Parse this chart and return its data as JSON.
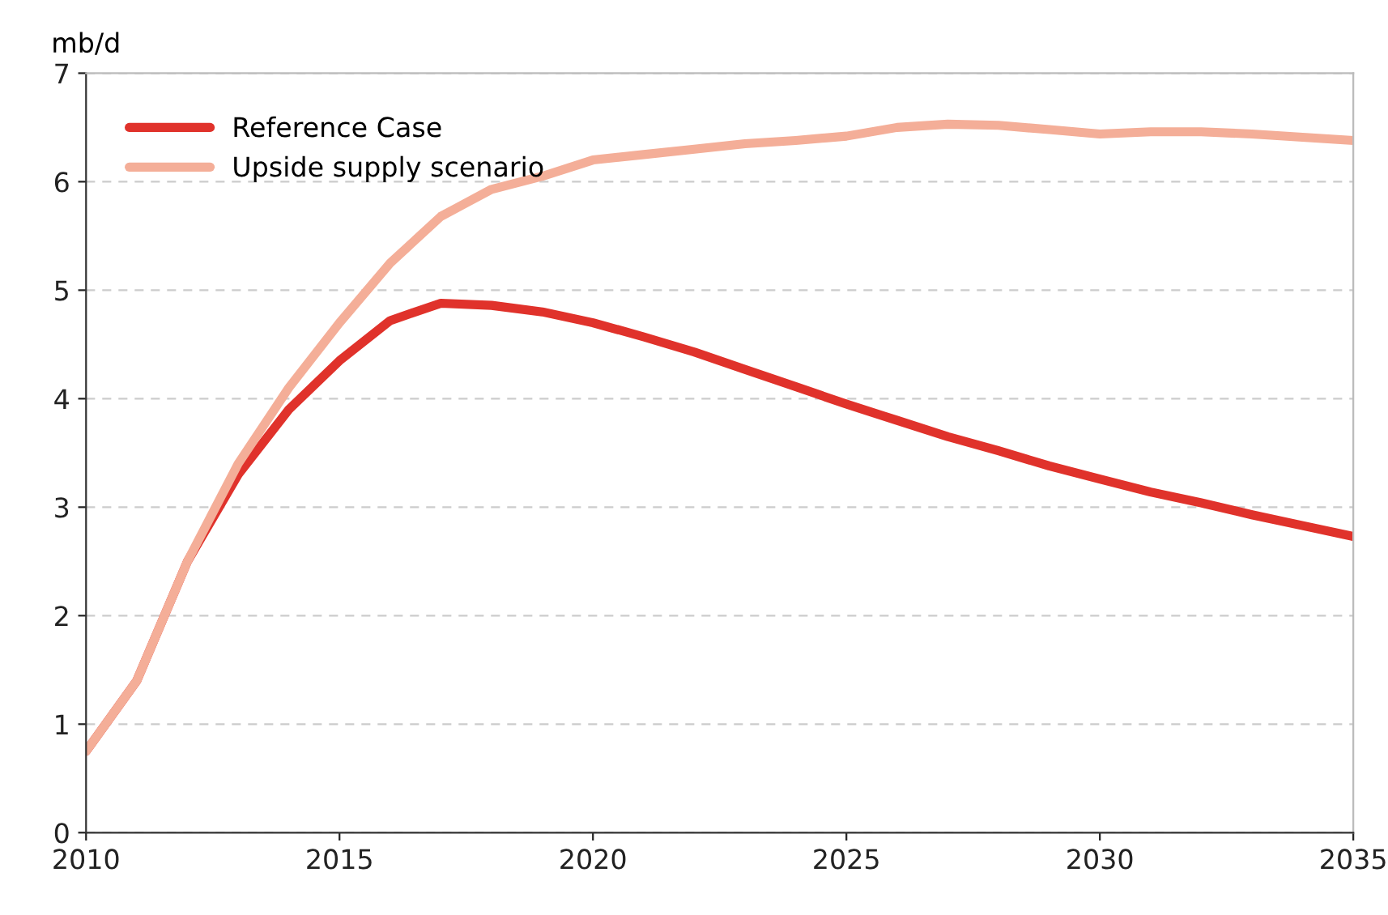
{
  "chart_data": {
    "type": "line",
    "ylabel": "mb/d",
    "x": [
      2010,
      2011,
      2012,
      2013,
      2014,
      2015,
      2016,
      2017,
      2018,
      2019,
      2020,
      2021,
      2022,
      2023,
      2024,
      2025,
      2026,
      2027,
      2028,
      2029,
      2030,
      2031,
      2032,
      2033,
      2034,
      2035
    ],
    "series": [
      {
        "name": "Reference Case",
        "color": "#e0322b",
        "values": [
          0.75,
          1.4,
          2.5,
          3.3,
          3.9,
          4.35,
          4.72,
          4.88,
          4.86,
          4.8,
          4.7,
          4.57,
          4.43,
          4.27,
          4.11,
          3.95,
          3.8,
          3.65,
          3.52,
          3.38,
          3.26,
          3.14,
          3.04,
          2.93,
          2.83,
          2.73
        ]
      },
      {
        "name": "Upside supply scenario",
        "color": "#f4ae98",
        "values": [
          0.75,
          1.4,
          2.5,
          3.4,
          4.1,
          4.7,
          5.25,
          5.68,
          5.93,
          6.05,
          6.2,
          6.25,
          6.3,
          6.35,
          6.38,
          6.42,
          6.5,
          6.53,
          6.52,
          6.48,
          6.44,
          6.46,
          6.46,
          6.44,
          6.41,
          6.38
        ]
      }
    ],
    "xlim": [
      2010,
      2035
    ],
    "xticks": [
      2010,
      2015,
      2020,
      2025,
      2030,
      2035
    ],
    "ylim": [
      0,
      7
    ],
    "yticks": [
      0,
      1,
      2,
      3,
      4,
      5,
      6,
      7
    ],
    "grid": "y",
    "legend": "top left",
    "marker": "none",
    "line_style": "solid"
  }
}
